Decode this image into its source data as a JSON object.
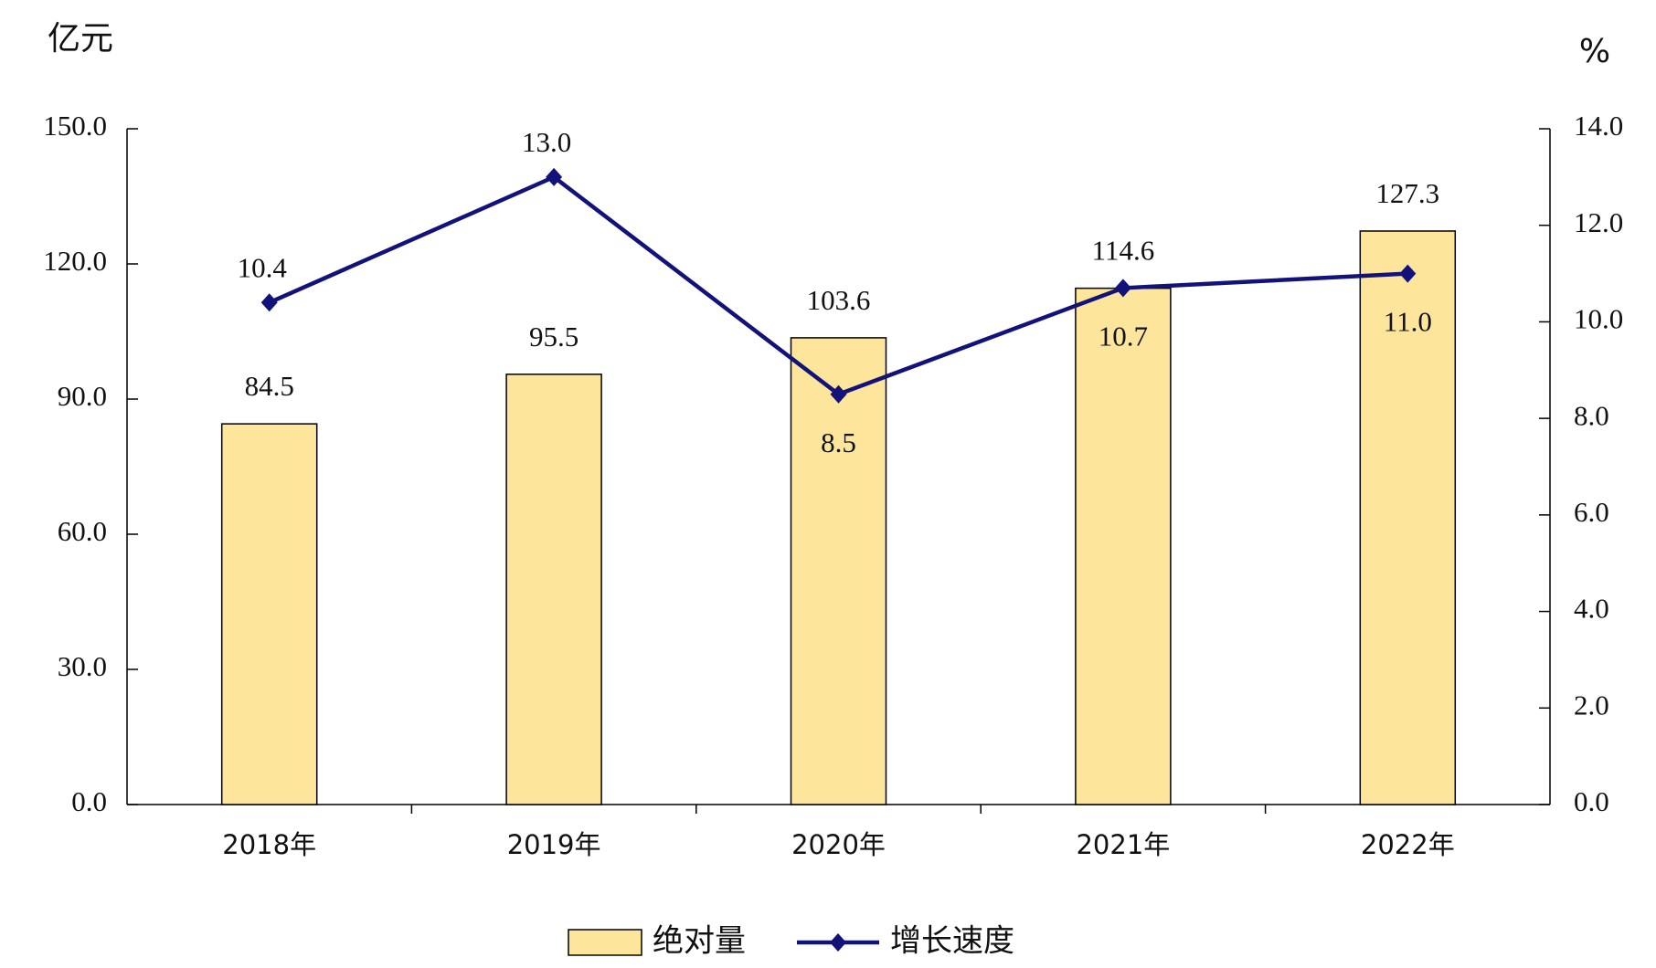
{
  "chart_data": {
    "type": "bar",
    "y_label": "亿元",
    "y2_label": "%",
    "categories": [
      "2018年",
      "2019年",
      "2020年",
      "2021年",
      "2022年"
    ],
    "series": [
      {
        "name": "绝对量",
        "type": "bar",
        "color": "#fde59c",
        "values": [
          84.5,
          95.5,
          103.6,
          114.6,
          127.3
        ],
        "value_labels": [
          "84.5",
          "95.5",
          "103.6",
          "114.6",
          "127.3"
        ]
      },
      {
        "name": "增长速度",
        "type": "line",
        "axis": "y2",
        "color": "#12127a",
        "values": [
          10.4,
          13.0,
          8.5,
          10.7,
          11.0
        ],
        "value_labels": [
          "10.4",
          "13.0",
          "8.5",
          "10.7",
          "11.0"
        ]
      }
    ],
    "ylim": [
      0,
      150
    ],
    "yticks": [
      {
        "value": 0,
        "label": "0.0"
      },
      {
        "value": 30,
        "label": "30.0"
      },
      {
        "value": 60,
        "label": "60.0"
      },
      {
        "value": 90,
        "label": "90.0"
      },
      {
        "value": 120,
        "label": "120.0"
      },
      {
        "value": 150,
        "label": "150.0"
      }
    ],
    "y2lim": [
      0,
      14
    ],
    "y2ticks": [
      {
        "value": 0,
        "label": "0.0"
      },
      {
        "value": 2,
        "label": "2.0"
      },
      {
        "value": 4,
        "label": "4.0"
      },
      {
        "value": 6,
        "label": "6.0"
      },
      {
        "value": 8,
        "label": "8.0"
      },
      {
        "value": 10,
        "label": "10.0"
      },
      {
        "value": 12,
        "label": "12.0"
      },
      {
        "value": 14,
        "label": "14.0"
      }
    ],
    "legend": "bottom"
  }
}
